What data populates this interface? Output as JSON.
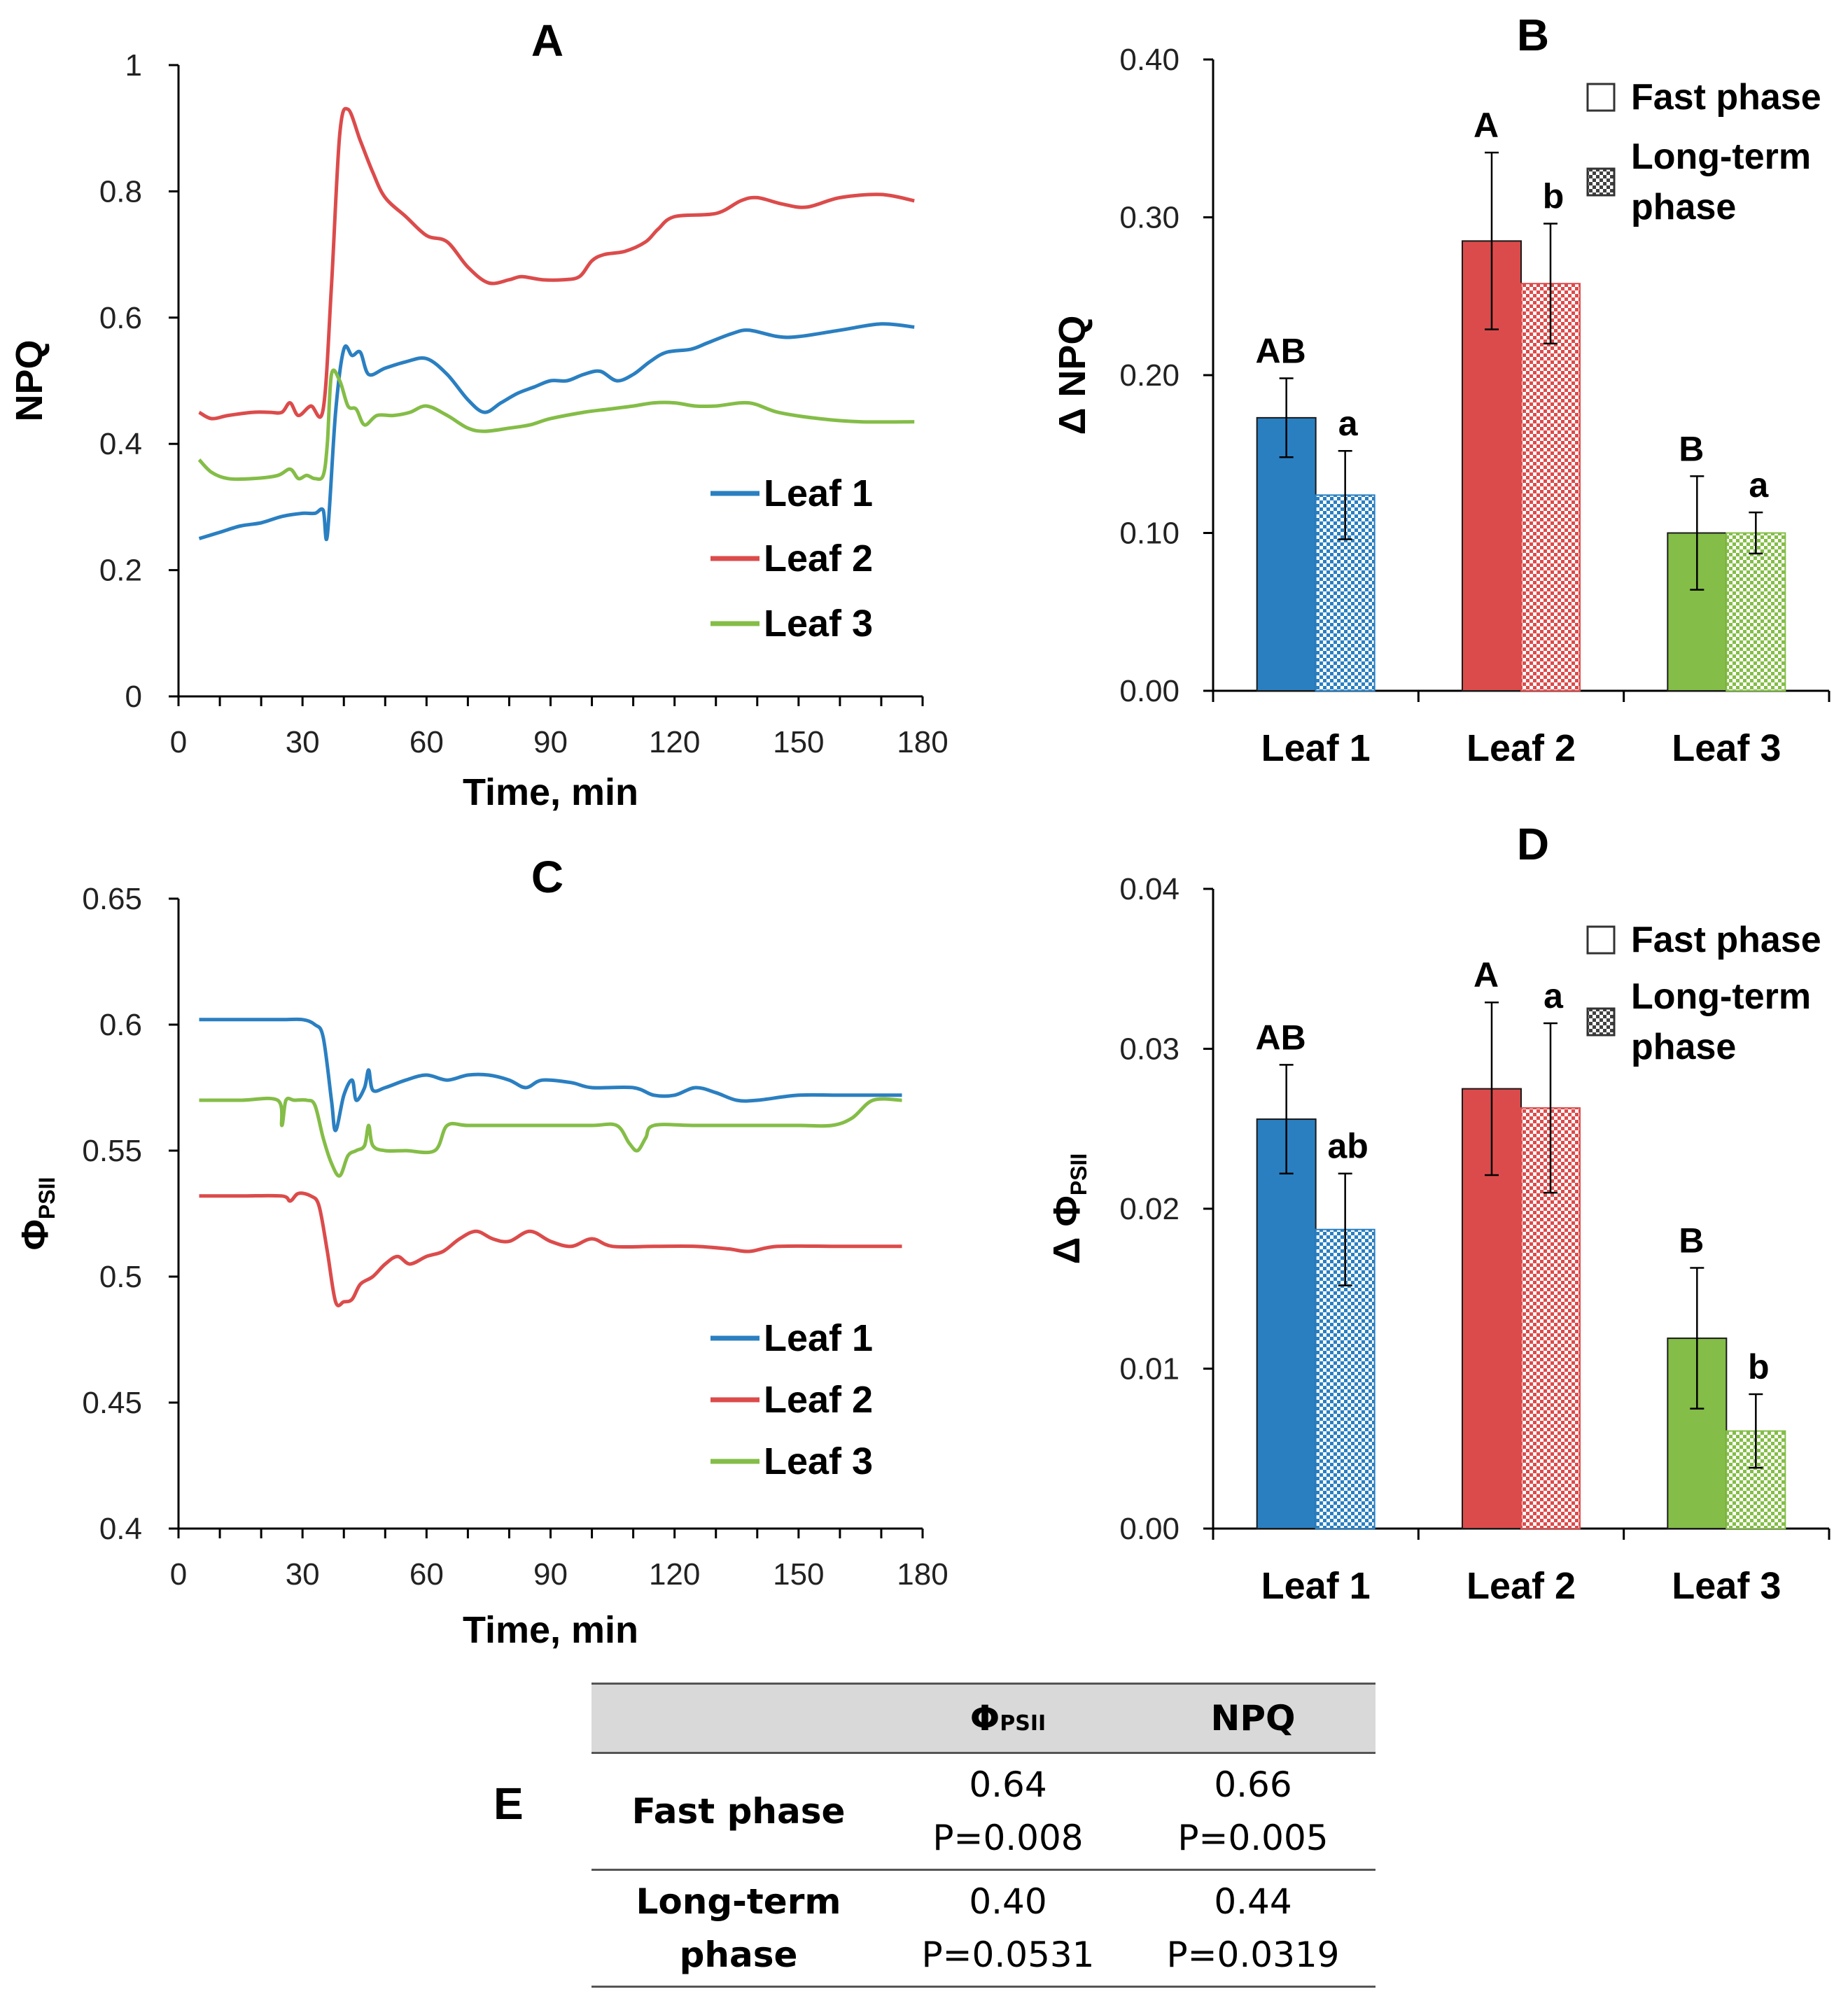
{
  "colors": {
    "leaf1": "#2a7fc1",
    "leaf2": "#dc4b4b",
    "leaf3": "#84bd47",
    "axis": "#000000",
    "table_header_bg": "#d9d9d9"
  },
  "chart_data": [
    {
      "panel": "A",
      "type": "line",
      "title": "A",
      "xlabel": "Time, min",
      "ylabel": "NPQ",
      "xlim": [
        0,
        180
      ],
      "ylim": [
        0,
        1
      ],
      "xticks": [
        "0",
        "30",
        "60",
        "90",
        "120",
        "150",
        "180"
      ],
      "yticks": [
        "0",
        "0.2",
        "0.4",
        "0.6",
        "0.8",
        "1"
      ],
      "legend": [
        "Leaf 1",
        "Leaf 2",
        "Leaf 3"
      ],
      "legend_position": "bottom-right",
      "series": [
        {
          "name": "Leaf 1",
          "points": [
            [
              5,
              0.25
            ],
            [
              10,
              0.26
            ],
            [
              15,
              0.27
            ],
            [
              20,
              0.275
            ],
            [
              25,
              0.285
            ],
            [
              30,
              0.29
            ],
            [
              33,
              0.29
            ],
            [
              35,
              0.295
            ],
            [
              36,
              0.255
            ],
            [
              38,
              0.45
            ],
            [
              40,
              0.55
            ],
            [
              42,
              0.54
            ],
            [
              44,
              0.545
            ],
            [
              46,
              0.51
            ],
            [
              50,
              0.52
            ],
            [
              55,
              0.53
            ],
            [
              60,
              0.535
            ],
            [
              65,
              0.51
            ],
            [
              70,
              0.47
            ],
            [
              74,
              0.45
            ],
            [
              78,
              0.465
            ],
            [
              82,
              0.48
            ],
            [
              86,
              0.49
            ],
            [
              90,
              0.5
            ],
            [
              94,
              0.5
            ],
            [
              98,
              0.51
            ],
            [
              102,
              0.515
            ],
            [
              106,
              0.5
            ],
            [
              110,
              0.51
            ],
            [
              114,
              0.53
            ],
            [
              118,
              0.545
            ],
            [
              124,
              0.55
            ],
            [
              128,
              0.56
            ],
            [
              134,
              0.575
            ],
            [
              138,
              0.58
            ],
            [
              145,
              0.57
            ],
            [
              150,
              0.57
            ],
            [
              160,
              0.58
            ],
            [
              170,
              0.59
            ],
            [
              178,
              0.585
            ]
          ]
        },
        {
          "name": "Leaf 2",
          "points": [
            [
              5,
              0.45
            ],
            [
              8,
              0.44
            ],
            [
              12,
              0.445
            ],
            [
              18,
              0.45
            ],
            [
              22,
              0.45
            ],
            [
              25,
              0.45
            ],
            [
              27,
              0.465
            ],
            [
              29,
              0.445
            ],
            [
              32,
              0.46
            ],
            [
              35,
              0.455
            ],
            [
              37,
              0.65
            ],
            [
              39,
              0.89
            ],
            [
              41,
              0.93
            ],
            [
              44,
              0.88
            ],
            [
              47,
              0.83
            ],
            [
              50,
              0.79
            ],
            [
              55,
              0.76
            ],
            [
              60,
              0.73
            ],
            [
              65,
              0.72
            ],
            [
              70,
              0.68
            ],
            [
              75,
              0.655
            ],
            [
              80,
              0.66
            ],
            [
              83,
              0.665
            ],
            [
              88,
              0.66
            ],
            [
              93,
              0.66
            ],
            [
              97,
              0.665
            ],
            [
              100,
              0.69
            ],
            [
              103,
              0.7
            ],
            [
              108,
              0.705
            ],
            [
              113,
              0.72
            ],
            [
              116,
              0.74
            ],
            [
              120,
              0.76
            ],
            [
              130,
              0.765
            ],
            [
              136,
              0.785
            ],
            [
              140,
              0.79
            ],
            [
              146,
              0.78
            ],
            [
              152,
              0.775
            ],
            [
              160,
              0.79
            ],
            [
              170,
              0.795
            ],
            [
              178,
              0.785
            ]
          ]
        },
        {
          "name": "Leaf 3",
          "points": [
            [
              5,
              0.375
            ],
            [
              8,
              0.355
            ],
            [
              12,
              0.345
            ],
            [
              18,
              0.345
            ],
            [
              24,
              0.35
            ],
            [
              27,
              0.36
            ],
            [
              29,
              0.345
            ],
            [
              31,
              0.35
            ],
            [
              33,
              0.345
            ],
            [
              35,
              0.35
            ],
            [
              36,
              0.4
            ],
            [
              37,
              0.51
            ],
            [
              39,
              0.5
            ],
            [
              41,
              0.46
            ],
            [
              43,
              0.455
            ],
            [
              45,
              0.43
            ],
            [
              48,
              0.445
            ],
            [
              52,
              0.445
            ],
            [
              56,
              0.45
            ],
            [
              60,
              0.46
            ],
            [
              65,
              0.445
            ],
            [
              70,
              0.425
            ],
            [
              74,
              0.42
            ],
            [
              80,
              0.425
            ],
            [
              85,
              0.43
            ],
            [
              90,
              0.44
            ],
            [
              98,
              0.45
            ],
            [
              104,
              0.455
            ],
            [
              110,
              0.46
            ],
            [
              115,
              0.465
            ],
            [
              120,
              0.465
            ],
            [
              125,
              0.46
            ],
            [
              130,
              0.46
            ],
            [
              138,
              0.465
            ],
            [
              145,
              0.45
            ],
            [
              155,
              0.44
            ],
            [
              165,
              0.435
            ],
            [
              178,
              0.435
            ]
          ]
        }
      ]
    },
    {
      "panel": "B",
      "type": "bar",
      "title": "B",
      "ylabel": "Δ NPQ",
      "ylim": [
        0,
        0.4
      ],
      "yticks": [
        "0.00",
        "0.10",
        "0.20",
        "0.30",
        "0.40"
      ],
      "categories": [
        "Leaf 1",
        "Leaf 2",
        "Leaf 3"
      ],
      "legend": [
        "Fast phase",
        "Long-term phase"
      ],
      "legend_lines": [
        [
          "Fast phase"
        ],
        [
          "Long-term",
          "phase"
        ]
      ],
      "legend_position": "top-right",
      "series": [
        {
          "name": "Fast phase",
          "values": [
            0.173,
            0.285,
            0.1
          ],
          "errors": [
            0.025,
            0.056,
            0.036
          ],
          "letters": [
            "AB",
            "A",
            "B"
          ]
        },
        {
          "name": "Long-term phase",
          "values": [
            0.124,
            0.258,
            0.1
          ],
          "errors": [
            0.028,
            0.038,
            0.013
          ],
          "letters": [
            "a",
            "b",
            "a"
          ]
        }
      ]
    },
    {
      "panel": "C",
      "type": "line",
      "title": "C",
      "xlabel": "Time, min",
      "ylabel": "Φ",
      "ylabel_sub": "PSII",
      "xlim": [
        0,
        180
      ],
      "ylim": [
        0.4,
        0.65
      ],
      "xticks": [
        "0",
        "30",
        "60",
        "90",
        "120",
        "150",
        "180"
      ],
      "yticks": [
        "0.4",
        "0.45",
        "0.5",
        "0.55",
        "0.6",
        "0.65"
      ],
      "legend": [
        "Leaf 1",
        "Leaf 2",
        "Leaf 3"
      ],
      "legend_position": "bottom-right",
      "series": [
        {
          "name": "Leaf 1",
          "points": [
            [
              5,
              0.602
            ],
            [
              15,
              0.602
            ],
            [
              25,
              0.602
            ],
            [
              30,
              0.602
            ],
            [
              33,
              0.6
            ],
            [
              35,
              0.595
            ],
            [
              37,
              0.57
            ],
            [
              38,
              0.558
            ],
            [
              40,
              0.572
            ],
            [
              42,
              0.578
            ],
            [
              43,
              0.57
            ],
            [
              45,
              0.575
            ],
            [
              46,
              0.582
            ],
            [
              47,
              0.574
            ],
            [
              50,
              0.575
            ],
            [
              55,
              0.578
            ],
            [
              60,
              0.58
            ],
            [
              65,
              0.578
            ],
            [
              70,
              0.58
            ],
            [
              75,
              0.58
            ],
            [
              80,
              0.578
            ],
            [
              84,
              0.575
            ],
            [
              88,
              0.578
            ],
            [
              95,
              0.577
            ],
            [
              100,
              0.575
            ],
            [
              110,
              0.575
            ],
            [
              115,
              0.572
            ],
            [
              120,
              0.572
            ],
            [
              125,
              0.575
            ],
            [
              130,
              0.573
            ],
            [
              135,
              0.57
            ],
            [
              140,
              0.57
            ],
            [
              150,
              0.572
            ],
            [
              160,
              0.572
            ],
            [
              175,
              0.572
            ]
          ]
        },
        {
          "name": "Leaf 2",
          "points": [
            [
              5,
              0.532
            ],
            [
              15,
              0.532
            ],
            [
              25,
              0.532
            ],
            [
              27,
              0.53
            ],
            [
              29,
              0.533
            ],
            [
              32,
              0.532
            ],
            [
              34,
              0.528
            ],
            [
              36,
              0.51
            ],
            [
              38,
              0.49
            ],
            [
              40,
              0.49
            ],
            [
              42,
              0.491
            ],
            [
              44,
              0.497
            ],
            [
              47,
              0.5
            ],
            [
              50,
              0.505
            ],
            [
              53,
              0.508
            ],
            [
              56,
              0.505
            ],
            [
              60,
              0.508
            ],
            [
              64,
              0.51
            ],
            [
              68,
              0.515
            ],
            [
              72,
              0.518
            ],
            [
              76,
              0.515
            ],
            [
              80,
              0.514
            ],
            [
              85,
              0.518
            ],
            [
              90,
              0.514
            ],
            [
              95,
              0.512
            ],
            [
              100,
              0.515
            ],
            [
              105,
              0.512
            ],
            [
              115,
              0.512
            ],
            [
              125,
              0.512
            ],
            [
              133,
              0.511
            ],
            [
              138,
              0.51
            ],
            [
              145,
              0.512
            ],
            [
              160,
              0.512
            ],
            [
              175,
              0.512
            ]
          ]
        },
        {
          "name": "Leaf 3",
          "points": [
            [
              5,
              0.57
            ],
            [
              15,
              0.57
            ],
            [
              24,
              0.57
            ],
            [
              25,
              0.56
            ],
            [
              26,
              0.57
            ],
            [
              28,
              0.57
            ],
            [
              31,
              0.57
            ],
            [
              33,
              0.568
            ],
            [
              35,
              0.555
            ],
            [
              37,
              0.545
            ],
            [
              39,
              0.54
            ],
            [
              41,
              0.548
            ],
            [
              43,
              0.55
            ],
            [
              45,
              0.552
            ],
            [
              46,
              0.56
            ],
            [
              47,
              0.552
            ],
            [
              50,
              0.55
            ],
            [
              55,
              0.55
            ],
            [
              62,
              0.55
            ],
            [
              65,
              0.56
            ],
            [
              70,
              0.56
            ],
            [
              80,
              0.56
            ],
            [
              90,
              0.56
            ],
            [
              100,
              0.56
            ],
            [
              106,
              0.56
            ],
            [
              109,
              0.553
            ],
            [
              111,
              0.55
            ],
            [
              113,
              0.555
            ],
            [
              115,
              0.56
            ],
            [
              125,
              0.56
            ],
            [
              140,
              0.56
            ],
            [
              150,
              0.56
            ],
            [
              158,
              0.56
            ],
            [
              163,
              0.563
            ],
            [
              168,
              0.57
            ],
            [
              175,
              0.57
            ]
          ]
        }
      ]
    },
    {
      "panel": "D",
      "type": "bar",
      "title": "D",
      "ylabel": "Δ Φ",
      "ylabel_sub": "PSII",
      "ylim": [
        0,
        0.04
      ],
      "yticks": [
        "0.00",
        "0.01",
        "0.02",
        "0.03",
        "0.04"
      ],
      "categories": [
        "Leaf 1",
        "Leaf 2",
        "Leaf 3"
      ],
      "legend": [
        "Fast phase",
        "Long-term phase"
      ],
      "legend_lines": [
        [
          "Fast phase"
        ],
        [
          "Long-term",
          "phase"
        ]
      ],
      "legend_position": "top-right",
      "series": [
        {
          "name": "Fast phase",
          "values": [
            0.0256,
            0.0275,
            0.0119
          ],
          "errors": [
            0.0034,
            0.0054,
            0.0044
          ],
          "letters": [
            "AB",
            "A",
            "B"
          ]
        },
        {
          "name": "Long-term phase",
          "values": [
            0.0187,
            0.0263,
            0.0061
          ],
          "errors": [
            0.0035,
            0.0053,
            0.0023
          ],
          "letters": [
            "ab",
            "a",
            "b"
          ]
        }
      ]
    }
  ],
  "table": {
    "label": "E",
    "col_psii_main": "Φ",
    "col_psii_sub": "PSII",
    "col_npq": "NPQ",
    "rows": [
      {
        "header_lines": [
          "Fast phase"
        ],
        "psii_r": "0.64",
        "psii_p": "P=0.008",
        "npq_r": "0.66",
        "npq_p": "P=0.005"
      },
      {
        "header_lines": [
          "Long-term",
          "phase"
        ],
        "psii_r": "0.40",
        "psii_p": "P=0.0531",
        "npq_r": "0.44",
        "npq_p": "P=0.0319"
      }
    ]
  }
}
